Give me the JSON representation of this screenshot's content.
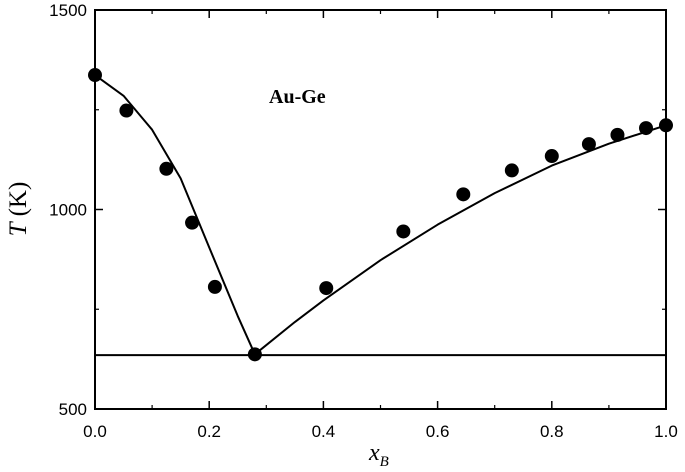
{
  "chart_data": {
    "type": "scatter",
    "title": "",
    "annotation": "Au-Ge",
    "xlabel": {
      "symbol": "x",
      "subscript": "B"
    },
    "ylabel": {
      "symbol": "T",
      "unit": "(K)"
    },
    "xlim": [
      0.0,
      1.0
    ],
    "ylim": [
      500,
      1500
    ],
    "x_ticks": [
      "0.0",
      "0.2",
      "0.4",
      "0.6",
      "0.8",
      "1.0"
    ],
    "x_tick_values": [
      0.0,
      0.2,
      0.4,
      0.6,
      0.8,
      1.0
    ],
    "y_ticks": [
      "500",
      "1000",
      "1500"
    ],
    "y_tick_values": [
      500,
      1000,
      1500
    ],
    "grid": false,
    "legend": "none",
    "colors": {
      "points": "#000000",
      "lines": "#000000"
    },
    "series": [
      {
        "kind": "points",
        "x": [
          0.0,
          0.055,
          0.125,
          0.17,
          0.21,
          0.28,
          0.405,
          0.54,
          0.645,
          0.73,
          0.8,
          0.865,
          0.915,
          0.965,
          1.0
        ],
        "y": [
          1337,
          1248,
          1102,
          967,
          806,
          637,
          803,
          945,
          1038,
          1098,
          1134,
          1164,
          1187,
          1204,
          1211
        ]
      },
      {
        "kind": "line",
        "x": [
          0.0,
          0.05,
          0.1,
          0.15,
          0.2,
          0.25,
          0.28
        ],
        "y": [
          1337,
          1285,
          1200,
          1078,
          905,
          733,
          637
        ]
      },
      {
        "kind": "line",
        "x": [
          0.28,
          0.35,
          0.4,
          0.5,
          0.6,
          0.7,
          0.8,
          0.9,
          1.0
        ],
        "y": [
          637,
          718,
          772,
          873,
          962,
          1041,
          1110,
          1165,
          1211
        ]
      },
      {
        "kind": "line",
        "x": [
          0.0,
          1.0
        ],
        "y": [
          635,
          635
        ]
      }
    ]
  }
}
